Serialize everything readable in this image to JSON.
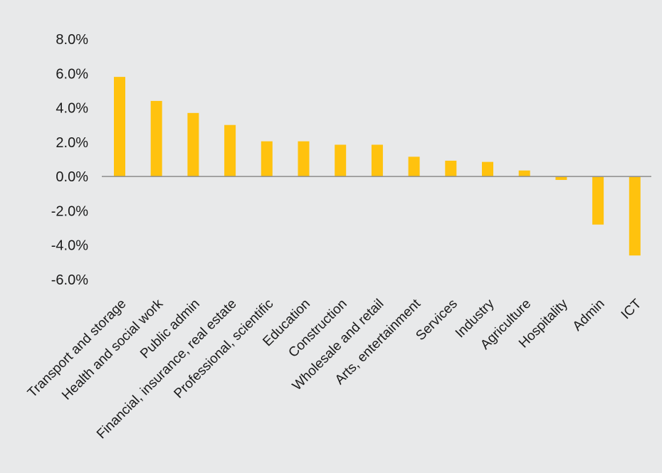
{
  "chart_data": {
    "type": "bar",
    "categories": [
      "Transport and storage",
      "Health and social work",
      "Public admin",
      "Financial, insurance, real estate",
      "Professional, scientific",
      "Education",
      "Construction",
      "Wholesale and retail",
      "Arts, entertainment",
      "Services",
      "Industry",
      "Agriculture",
      "Hospitality",
      "Admin",
      "ICT"
    ],
    "values": [
      5.8,
      4.4,
      3.7,
      3.0,
      2.05,
      2.05,
      1.85,
      1.85,
      1.15,
      0.92,
      0.85,
      0.35,
      -0.2,
      -2.8,
      -4.6
    ],
    "yticks": [
      "8.0%",
      "6.0%",
      "4.0%",
      "2.0%",
      "0.0%",
      "-2.0%",
      "-4.0%",
      "-6.0%"
    ],
    "ylim": [
      -6,
      8
    ],
    "grid": false,
    "legend": "none",
    "bar_color": "#ffc20e",
    "axis_color": "#8c8c8c"
  }
}
